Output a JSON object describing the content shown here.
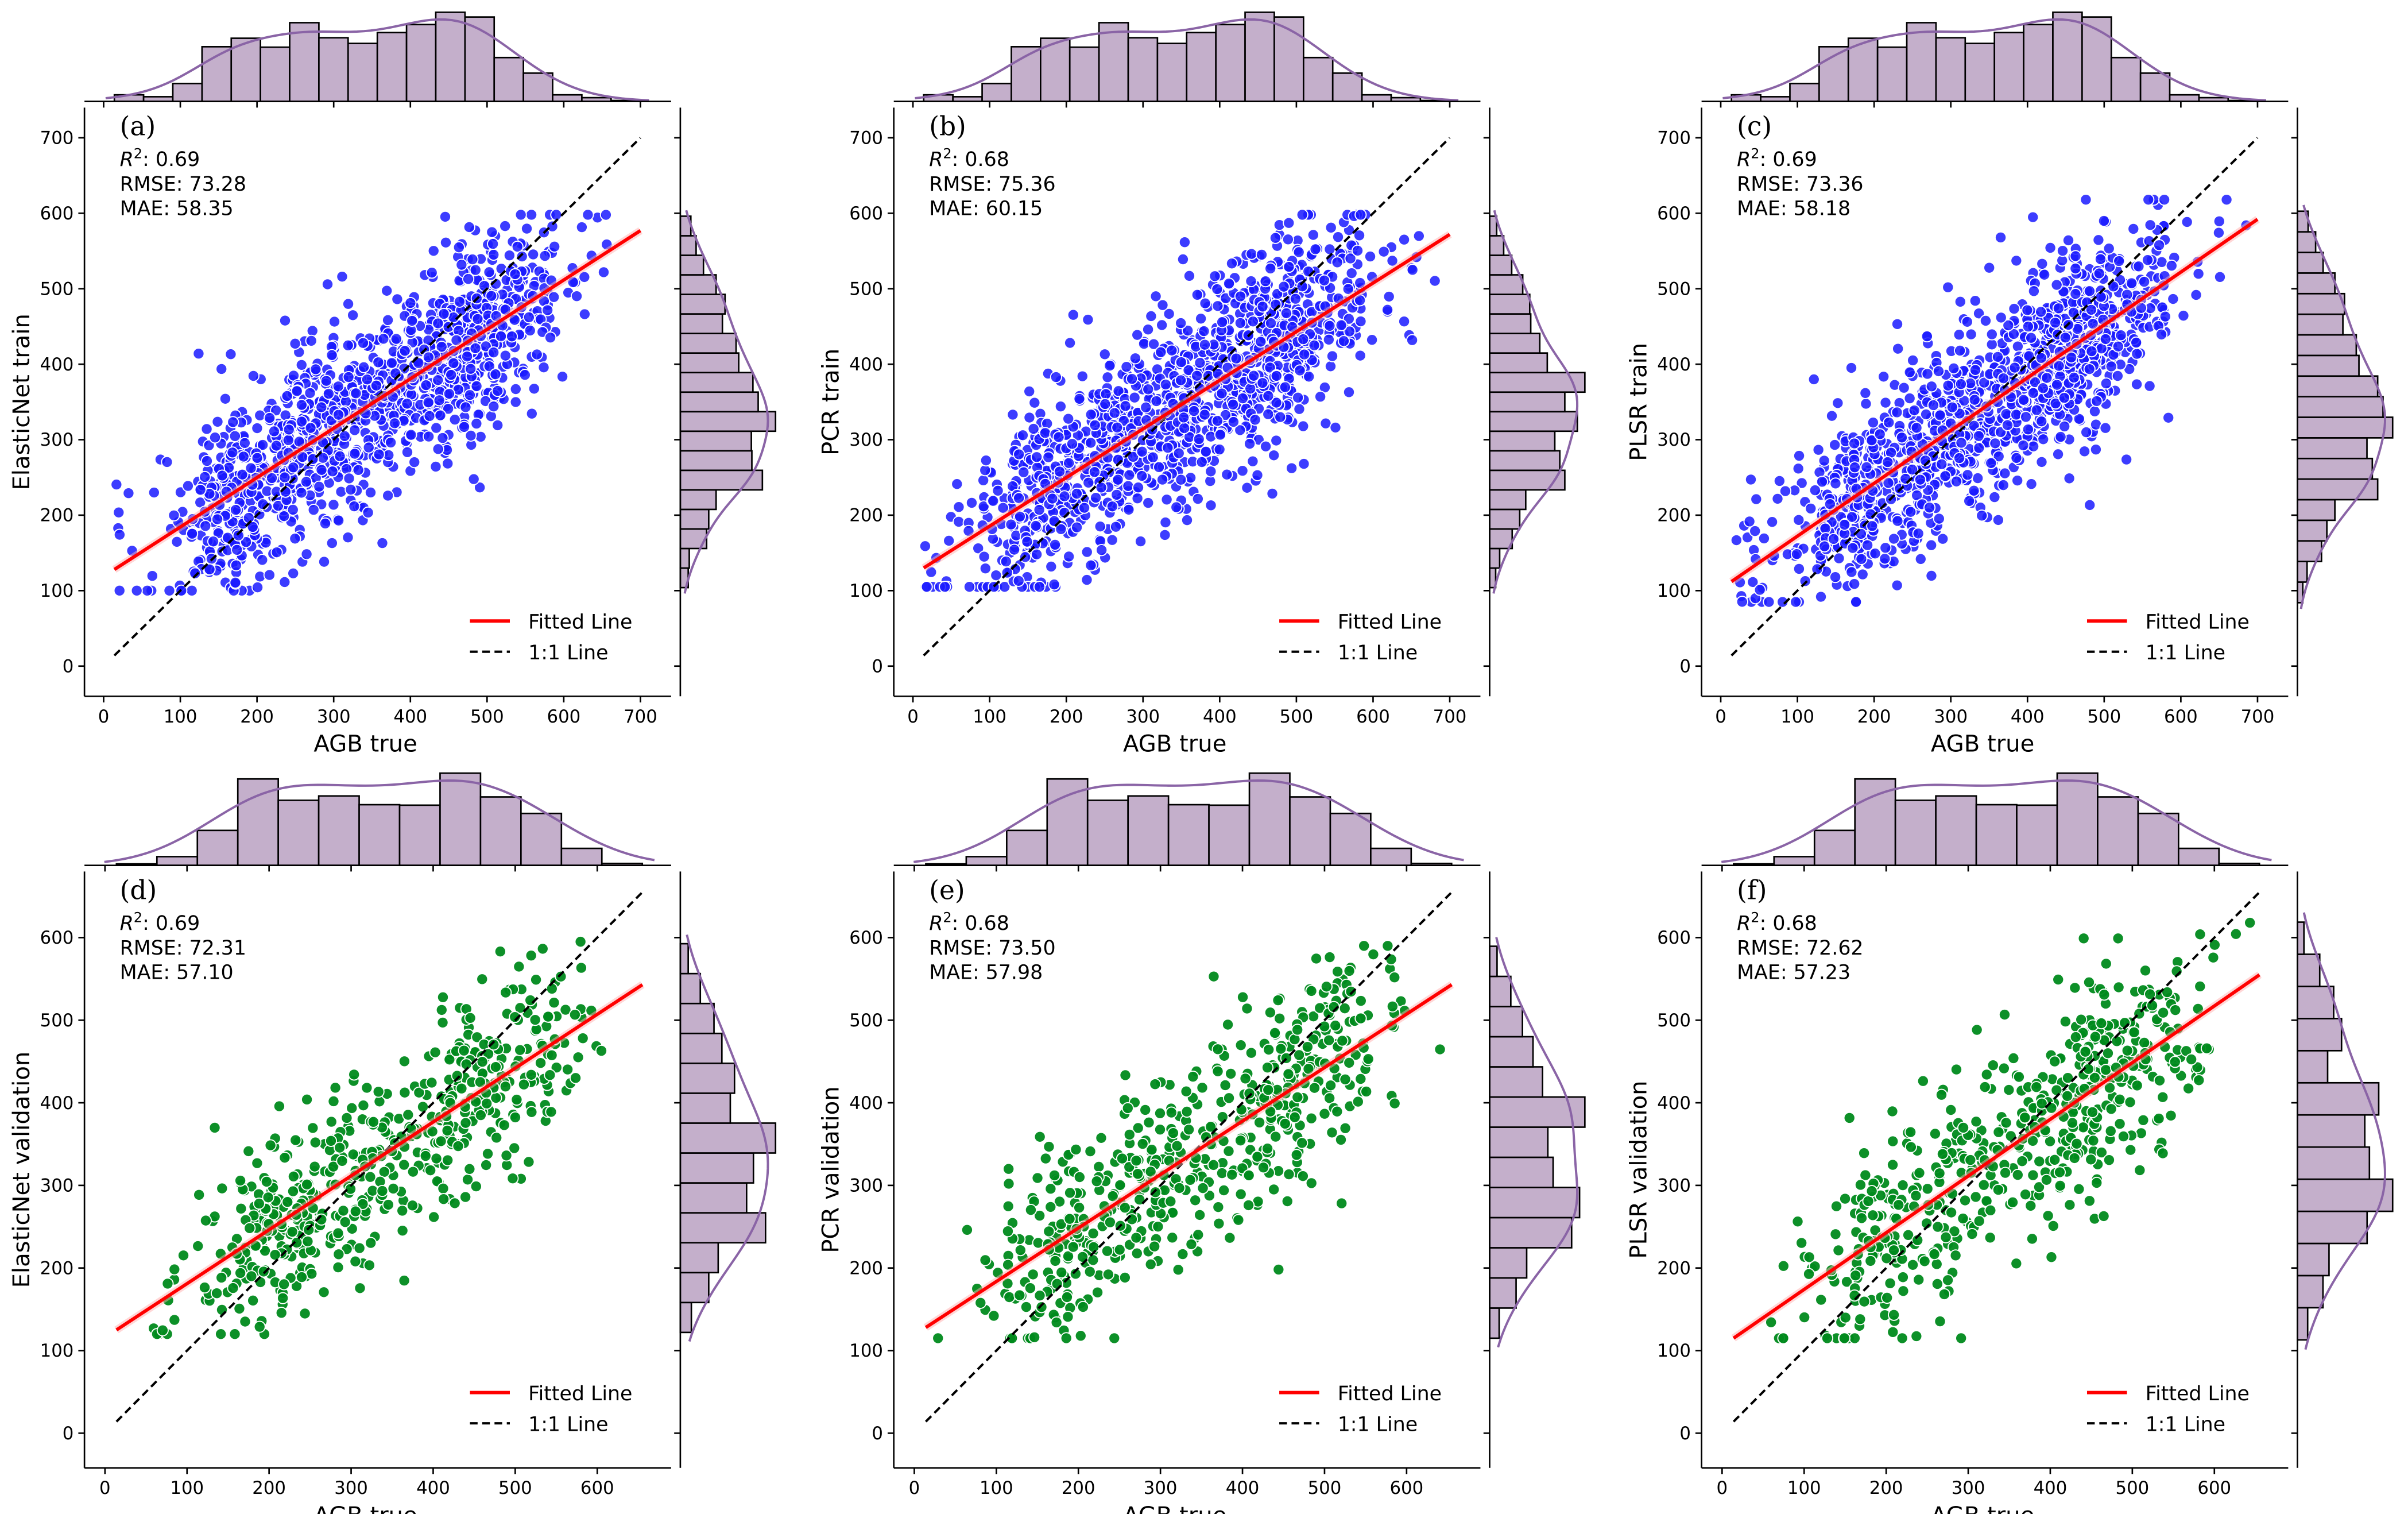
{
  "colors": {
    "train_point": "#1a1aff",
    "validation_point": "#008a1c",
    "fit_line": "#ff0000",
    "one_to_one": "#000000",
    "hist_fill": "#c4afcb",
    "hist_edge": "#000000",
    "kde_line": "#8a64a6"
  },
  "legend": {
    "fitted": "Fitted Line",
    "one_to_one": "1:1 Line",
    "placement": "lower-right"
  },
  "chart_data": [
    {
      "id": "a",
      "type": "scatter",
      "panel_label": "(a)",
      "row": "train",
      "xlabel": "AGB true",
      "ylabel": "ElasticNet train",
      "stats": {
        "r2_label": "R",
        "r2_sup": "2",
        "r2_value": ": 0.69",
        "rmse": "RMSE: 73.28",
        "mae": "MAE: 58.35"
      },
      "xlim": [
        -25,
        740
      ],
      "ylim": [
        -40,
        740
      ],
      "xticks": [
        0,
        100,
        200,
        300,
        400,
        500,
        600,
        700
      ],
      "yticks": [
        0,
        100,
        200,
        300,
        400,
        500,
        600,
        700
      ],
      "fit_line": [
        [
          14,
          128
        ],
        [
          700,
          577
        ]
      ],
      "one_to_one": [
        [
          14,
          14
        ],
        [
          700,
          700
        ]
      ],
      "points": {
        "n": 1300,
        "noise_sd": 62,
        "ymin": 100,
        "ymax": 598,
        "seed": 11
      },
      "top_hist": {
        "start": 14,
        "bin_width": 38.1,
        "counts": [
          14,
          10,
          38,
          116,
          134,
          115,
          167,
          135,
          123,
          146,
          163,
          189,
          179,
          93,
          60,
          14,
          8,
          2
        ]
      },
      "right_hist": {
        "start": 104,
        "bin_width": 25.9,
        "counts": [
          15,
          17,
          50,
          54,
          68,
          156,
          136,
          135,
          181,
          148,
          138,
          111,
          106,
          80,
          85,
          68,
          44,
          30,
          20
        ]
      }
    },
    {
      "id": "b",
      "type": "scatter",
      "panel_label": "(b)",
      "row": "train",
      "xlabel": "AGB true",
      "ylabel": "PCR train",
      "stats": {
        "r2_label": "R",
        "r2_sup": "2",
        "r2_value": ": 0.68",
        "rmse": "RMSE: 75.36",
        "mae": "MAE: 60.15"
      },
      "xlim": [
        -25,
        740
      ],
      "ylim": [
        -40,
        740
      ],
      "xticks": [
        0,
        100,
        200,
        300,
        400,
        500,
        600,
        700
      ],
      "yticks": [
        0,
        100,
        200,
        300,
        400,
        500,
        600,
        700
      ],
      "fit_line": [
        [
          14,
          130
        ],
        [
          700,
          572
        ]
      ],
      "one_to_one": [
        [
          14,
          14
        ],
        [
          700,
          700
        ]
      ],
      "points": {
        "n": 1300,
        "noise_sd": 64,
        "ymin": 105,
        "ymax": 598,
        "seed": 23
      },
      "top_hist": {
        "start": 14,
        "bin_width": 38.1,
        "counts": [
          14,
          10,
          38,
          116,
          134,
          115,
          167,
          135,
          123,
          146,
          163,
          189,
          179,
          93,
          60,
          14,
          8,
          2
        ]
      },
      "right_hist": {
        "start": 104,
        "bin_width": 25.9,
        "counts": [
          12,
          20,
          45,
          60,
          72,
          150,
          140,
          130,
          175,
          150,
          190,
          115,
          100,
          82,
          80,
          66,
          44,
          28,
          14
        ]
      }
    },
    {
      "id": "c",
      "type": "scatter",
      "panel_label": "(c)",
      "row": "train",
      "xlabel": "AGB true",
      "ylabel": "PLSR train",
      "stats": {
        "r2_label": "R",
        "r2_sup": "2",
        "r2_value": ": 0.69",
        "rmse": "RMSE: 73.36",
        "mae": "MAE: 58.18"
      },
      "xlim": [
        -25,
        740
      ],
      "ylim": [
        -40,
        740
      ],
      "xticks": [
        0,
        100,
        200,
        300,
        400,
        500,
        600,
        700
      ],
      "yticks": [
        0,
        100,
        200,
        300,
        400,
        500,
        600,
        700
      ],
      "fit_line": [
        [
          14,
          112
        ],
        [
          700,
          592
        ]
      ],
      "one_to_one": [
        [
          14,
          14
        ],
        [
          700,
          700
        ]
      ],
      "points": {
        "n": 1300,
        "noise_sd": 62,
        "ymin": 85,
        "ymax": 618,
        "seed": 37
      },
      "top_hist": {
        "start": 14,
        "bin_width": 38.1,
        "counts": [
          14,
          10,
          38,
          116,
          134,
          115,
          167,
          135,
          123,
          146,
          163,
          189,
          179,
          93,
          60,
          14,
          8,
          2
        ]
      },
      "right_hist": {
        "start": 84,
        "bin_width": 27.3,
        "counts": [
          10,
          18,
          45,
          55,
          70,
          150,
          140,
          130,
          178,
          160,
          150,
          115,
          110,
          85,
          88,
          70,
          48,
          34,
          20
        ]
      }
    },
    {
      "id": "d",
      "type": "scatter",
      "panel_label": "(d)",
      "row": "validation",
      "xlabel": "AGB true",
      "ylabel": "ElasticNet validation",
      "stats": {
        "r2_label": "R",
        "r2_sup": "2",
        "r2_value": ": 0.69",
        "rmse": "RMSE: 72.31",
        "mae": "MAE: 57.10"
      },
      "xlim": [
        -25,
        690
      ],
      "ylim": [
        -42,
        680
      ],
      "xticks": [
        0,
        100,
        200,
        300,
        400,
        500,
        600
      ],
      "yticks": [
        0,
        100,
        200,
        300,
        400,
        500,
        600
      ],
      "fit_line": [
        [
          14,
          125
        ],
        [
          655,
          543
        ]
      ],
      "one_to_one": [
        [
          14,
          14
        ],
        [
          655,
          655
        ]
      ],
      "points": {
        "n": 560,
        "noise_sd": 60,
        "ymin": 120,
        "ymax": 595,
        "seed": 41
      },
      "top_hist": {
        "start": 14,
        "bin_width": 49.3,
        "counts": [
          3,
          18,
          72,
          178,
          134,
          143,
          125,
          124,
          190,
          141,
          107,
          35,
          4
        ]
      },
      "right_hist": {
        "start": 122,
        "bin_width": 36.2,
        "counts": [
          21,
          54,
          72,
          162,
          126,
          139,
          181,
          95,
          103,
          79,
          64,
          38,
          15
        ]
      }
    },
    {
      "id": "e",
      "type": "scatter",
      "panel_label": "(e)",
      "row": "validation",
      "xlabel": "AGB true",
      "ylabel": "PCR validation",
      "stats": {
        "r2_label": "R",
        "r2_sup": "2",
        "r2_value": ": 0.68",
        "rmse": "RMSE: 73.50",
        "mae": "MAE: 57.98"
      },
      "xlim": [
        -25,
        690
      ],
      "ylim": [
        -42,
        680
      ],
      "xticks": [
        0,
        100,
        200,
        300,
        400,
        500,
        600
      ],
      "yticks": [
        0,
        100,
        200,
        300,
        400,
        500,
        600
      ],
      "fit_line": [
        [
          14,
          128
        ],
        [
          655,
          543
        ]
      ],
      "one_to_one": [
        [
          14,
          14
        ],
        [
          655,
          655
        ]
      ],
      "points": {
        "n": 560,
        "noise_sd": 61,
        "ymin": 115,
        "ymax": 590,
        "seed": 53
      },
      "top_hist": {
        "start": 14,
        "bin_width": 49.3,
        "counts": [
          3,
          18,
          72,
          178,
          134,
          143,
          125,
          124,
          190,
          141,
          107,
          35,
          4
        ]
      },
      "right_hist": {
        "start": 115,
        "bin_width": 36.5,
        "counts": [
          18,
          50,
          70,
          155,
          170,
          120,
          110,
          180,
          100,
          82,
          62,
          40,
          14
        ]
      }
    },
    {
      "id": "f",
      "type": "scatter",
      "panel_label": "(f)",
      "row": "validation",
      "xlabel": "AGB true",
      "ylabel": "PLSR validation",
      "stats": {
        "r2_label": "R",
        "r2_sup": "2",
        "r2_value": ": 0.68",
        "rmse": "RMSE: 72.62",
        "mae": "MAE: 57.23"
      },
      "xlim": [
        -25,
        690
      ],
      "ylim": [
        -42,
        680
      ],
      "xticks": [
        0,
        100,
        200,
        300,
        400,
        500,
        600
      ],
      "yticks": [
        0,
        100,
        200,
        300,
        400,
        500,
        600
      ],
      "fit_line": [
        [
          14,
          115
        ],
        [
          655,
          555
        ]
      ],
      "one_to_one": [
        [
          14,
          14
        ],
        [
          655,
          655
        ]
      ],
      "points": {
        "n": 560,
        "noise_sd": 60,
        "ymin": 115,
        "ymax": 618,
        "seed": 67
      },
      "top_hist": {
        "start": 14,
        "bin_width": 49.3,
        "counts": [
          3,
          18,
          72,
          178,
          134,
          143,
          125,
          124,
          190,
          141,
          107,
          35,
          4
        ]
      },
      "right_hist": {
        "start": 113,
        "bin_width": 38.9,
        "counts": [
          22,
          55,
          68,
          150,
          205,
          155,
          145,
          175,
          65,
          95,
          78,
          48,
          14
        ]
      }
    }
  ]
}
